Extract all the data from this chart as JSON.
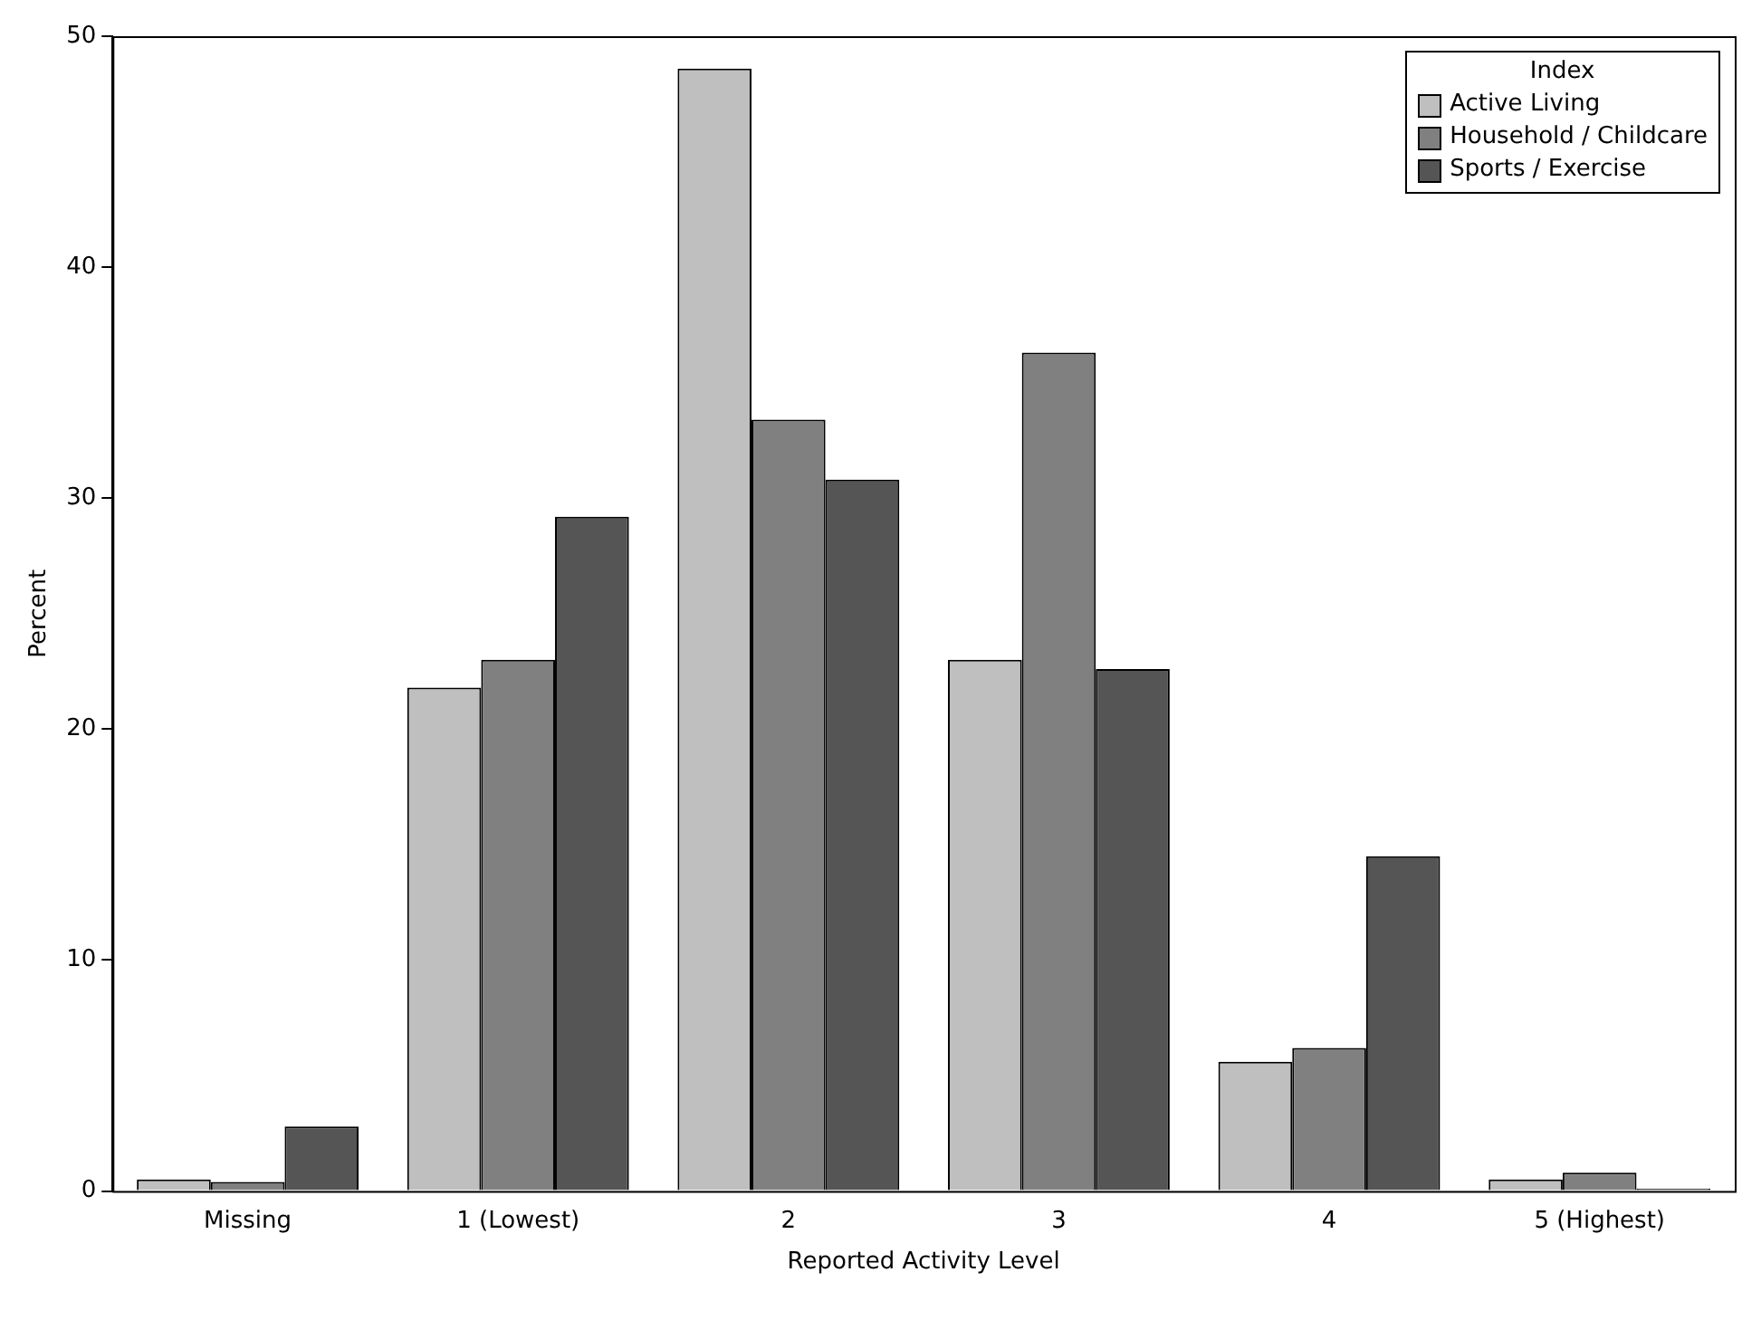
{
  "chart_data": {
    "type": "bar",
    "xlabel": "Reported Activity Level",
    "ylabel": "Percent",
    "legend_title": "Index",
    "legend": "top right",
    "grid": false,
    "categories": [
      "Missing",
      "1 (Lowest)",
      "2",
      "3",
      "4",
      "5 (Highest)"
    ],
    "ylim": [
      0,
      50
    ],
    "yticks": [
      0,
      10,
      20,
      30,
      40,
      50
    ],
    "series": [
      {
        "name": "Active Living",
        "color": "#bfbfbf",
        "values": [
          0.5,
          21.8,
          48.6,
          23.0,
          5.6,
          0.5
        ]
      },
      {
        "name": "Household / Childcare",
        "color": "#808080",
        "values": [
          0.4,
          23.0,
          33.4,
          36.3,
          6.2,
          0.8
        ]
      },
      {
        "name": "Sports / Exercise",
        "color": "#555555",
        "values": [
          2.8,
          29.2,
          30.8,
          22.6,
          14.5,
          0.1
        ]
      }
    ]
  }
}
